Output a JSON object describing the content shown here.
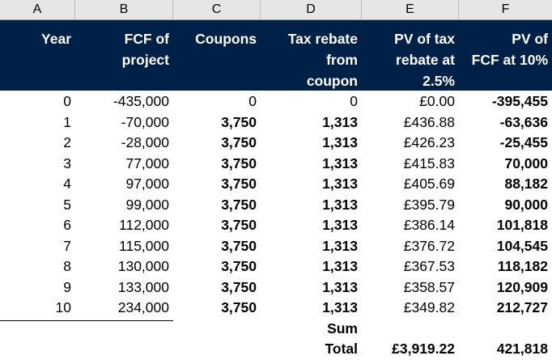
{
  "column_letters": [
    "A",
    "B",
    "C",
    "D",
    "E",
    "F"
  ],
  "headers": {
    "year": "Year",
    "fcf": "FCF of\nproject",
    "coupons": "Coupons",
    "tax_rebate": "Tax rebate\nfrom\ncoupon",
    "pv_tax_rebate": "PV of tax\nrebate at\n2.5%",
    "pv_fcf": "PV of\nFCF at 10%"
  },
  "rows": [
    {
      "year": "0",
      "fcf": "-435,000",
      "coupons": "0",
      "tax_rebate": "0",
      "pv_tax_rebate": "£0.00",
      "pv_fcf": "-395,455"
    },
    {
      "year": "1",
      "fcf": "-70,000",
      "coupons": "3,750",
      "tax_rebate": "1,313",
      "pv_tax_rebate": "£436.88",
      "pv_fcf": "-63,636"
    },
    {
      "year": "2",
      "fcf": "-28,000",
      "coupons": "3,750",
      "tax_rebate": "1,313",
      "pv_tax_rebate": "£426.23",
      "pv_fcf": "-25,455"
    },
    {
      "year": "3",
      "fcf": "77,000",
      "coupons": "3,750",
      "tax_rebate": "1,313",
      "pv_tax_rebate": "£415.83",
      "pv_fcf": "70,000"
    },
    {
      "year": "4",
      "fcf": "97,000",
      "coupons": "3,750",
      "tax_rebate": "1,313",
      "pv_tax_rebate": "£405.69",
      "pv_fcf": "88,182"
    },
    {
      "year": "5",
      "fcf": "99,000",
      "coupons": "3,750",
      "tax_rebate": "1,313",
      "pv_tax_rebate": "£395.79",
      "pv_fcf": "90,000"
    },
    {
      "year": "6",
      "fcf": "112,000",
      "coupons": "3,750",
      "tax_rebate": "1,313",
      "pv_tax_rebate": "£386.14",
      "pv_fcf": "101,818"
    },
    {
      "year": "7",
      "fcf": "115,000",
      "coupons": "3,750",
      "tax_rebate": "1,313",
      "pv_tax_rebate": "£376.72",
      "pv_fcf": "104,545"
    },
    {
      "year": "8",
      "fcf": "130,000",
      "coupons": "3,750",
      "tax_rebate": "1,313",
      "pv_tax_rebate": "£367.53",
      "pv_fcf": "118,182"
    },
    {
      "year": "9",
      "fcf": "133,000",
      "coupons": "3,750",
      "tax_rebate": "1,313",
      "pv_tax_rebate": "£358.57",
      "pv_fcf": "120,909"
    },
    {
      "year": "10",
      "fcf": "234,000",
      "coupons": "3,750",
      "tax_rebate": "1,313",
      "pv_tax_rebate": "£349.82",
      "pv_fcf": "212,727"
    }
  ],
  "summary": {
    "sum_label": "Sum",
    "total_label": "Total",
    "total_pv_tax_rebate": "£3,919.22",
    "total_pv_fcf": "421,818"
  },
  "colors": {
    "header_band": "#002147",
    "column_header_bg": "#e6e6e6"
  }
}
